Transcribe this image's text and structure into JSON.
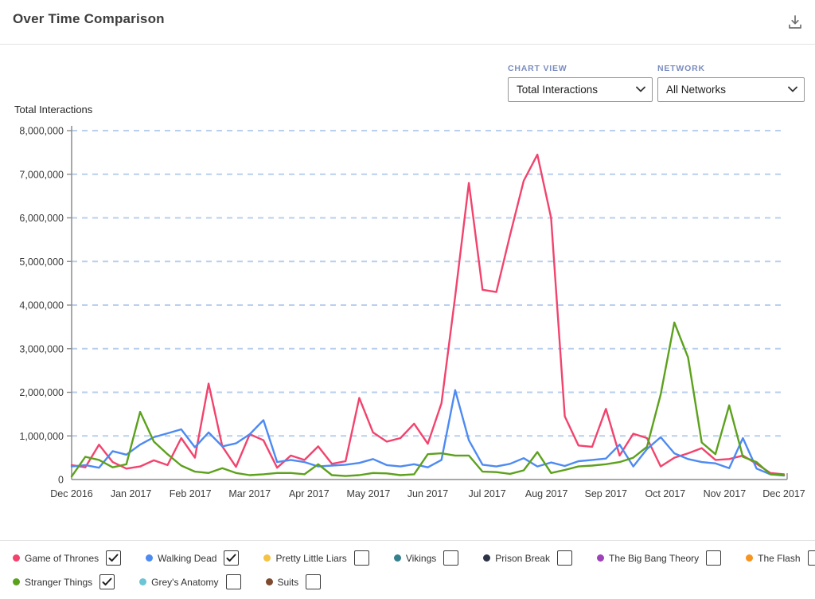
{
  "header": {
    "title": "Over Time Comparison"
  },
  "controls": {
    "chart_view": {
      "label": "CHART VIEW",
      "value": "Total Interactions"
    },
    "network": {
      "label": "NETWORK",
      "value": "All Networks"
    }
  },
  "chart_data": {
    "type": "line",
    "title": "Over Time Comparison",
    "ylabel": "Total Interactions",
    "ylim": [
      0,
      8000000
    ],
    "grid": "horizontal-dashed-blue",
    "grid_color": "#b9cfee",
    "x_unit": "week",
    "x_tick_labels": [
      "Dec 2016",
      "Jan 2017",
      "Feb 2017",
      "Mar 2017",
      "Apr 2017",
      "May 2017",
      "Jun 2017",
      "Jul 2017",
      "Aug 2017",
      "Sep 2017",
      "Oct 2017",
      "Nov 2017",
      "Dec 2017"
    ],
    "y_ticks": [
      "0",
      "1,000,000",
      "2,000,000",
      "3,000,000",
      "4,000,000",
      "5,000,000",
      "6,000,000",
      "7,000,000",
      "8,000,000"
    ],
    "series": [
      {
        "name": "Game of Thrones",
        "color": "#f2436d",
        "values_millions": [
          0.33,
          0.28,
          0.8,
          0.4,
          0.25,
          0.3,
          0.44,
          0.33,
          0.95,
          0.5,
          2.2,
          0.76,
          0.29,
          1.04,
          0.9,
          0.27,
          0.55,
          0.45,
          0.76,
          0.36,
          0.42,
          1.87,
          1.08,
          0.87,
          0.95,
          1.28,
          0.82,
          1.75,
          4.2,
          6.8,
          4.35,
          4.3,
          5.6,
          6.85,
          7.45,
          6.0,
          1.45,
          0.78,
          0.75,
          1.62,
          0.55,
          1.05,
          0.95,
          0.3,
          0.5,
          0.6,
          0.72,
          0.45,
          0.47,
          0.55,
          0.36,
          0.15,
          0.12
        ]
      },
      {
        "name": "Walking Dead",
        "color": "#4d8af2",
        "values_millions": [
          0.3,
          0.33,
          0.27,
          0.65,
          0.57,
          0.8,
          0.97,
          1.06,
          1.15,
          0.74,
          1.08,
          0.76,
          0.83,
          1.04,
          1.36,
          0.4,
          0.45,
          0.4,
          0.3,
          0.32,
          0.34,
          0.38,
          0.47,
          0.33,
          0.3,
          0.35,
          0.28,
          0.45,
          2.05,
          0.9,
          0.34,
          0.3,
          0.36,
          0.49,
          0.3,
          0.39,
          0.31,
          0.42,
          0.45,
          0.48,
          0.8,
          0.3,
          0.7,
          0.97,
          0.6,
          0.47,
          0.4,
          0.37,
          0.26,
          0.95,
          0.25,
          0.12,
          0.09
        ]
      },
      {
        "name": "Stranger Things",
        "color": "#5ca11c",
        "values_millions": [
          0.07,
          0.52,
          0.45,
          0.28,
          0.35,
          1.55,
          0.87,
          0.58,
          0.32,
          0.18,
          0.15,
          0.26,
          0.15,
          0.1,
          0.12,
          0.15,
          0.15,
          0.12,
          0.35,
          0.1,
          0.08,
          0.1,
          0.15,
          0.14,
          0.1,
          0.12,
          0.58,
          0.6,
          0.55,
          0.55,
          0.18,
          0.17,
          0.13,
          0.21,
          0.63,
          0.15,
          0.22,
          0.3,
          0.32,
          0.35,
          0.4,
          0.5,
          0.75,
          1.95,
          3.6,
          2.8,
          0.85,
          0.58,
          1.7,
          0.52,
          0.4,
          0.12,
          0.1
        ]
      }
    ]
  },
  "legend": {
    "rows": [
      [
        {
          "label": "Game of Thrones",
          "color": "#f2436d",
          "checked": true
        },
        {
          "label": "Walking Dead",
          "color": "#4d8af2",
          "checked": true
        },
        {
          "label": "Pretty Little Liars",
          "color": "#f5c242",
          "checked": false
        },
        {
          "label": "Vikings",
          "color": "#35808f",
          "checked": false
        },
        {
          "label": "Prison Break",
          "color": "#2e3448",
          "checked": false
        },
        {
          "label": "The Big Bang Theory",
          "color": "#9e42ba",
          "checked": false
        },
        {
          "label": "The Flash",
          "color": "#f7941e",
          "checked": false
        }
      ],
      [
        {
          "label": "Stranger Things",
          "color": "#5ca11c",
          "checked": true
        },
        {
          "label": "Grey's Anatomy",
          "color": "#6cc5d4",
          "checked": false
        },
        {
          "label": "Suits",
          "color": "#7d4a2e",
          "checked": false
        }
      ]
    ]
  }
}
